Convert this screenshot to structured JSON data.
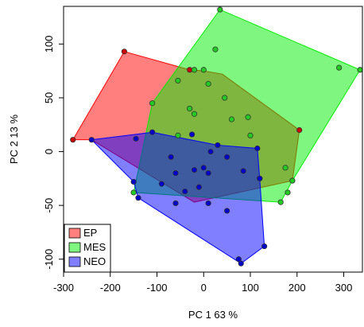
{
  "chart_data": {
    "type": "scatter",
    "xlabel": "PC 1   63 %",
    "ylabel": "PC 2   13 %",
    "xlim": [
      -300,
      340
    ],
    "ylim": [
      -112,
      135
    ],
    "xticks": [
      -300,
      -200,
      -100,
      0,
      100,
      200,
      300
    ],
    "yticks": [
      -100,
      -50,
      0,
      50,
      100
    ],
    "legend": {
      "position": "bottom-left",
      "entries": [
        "EP",
        "MES",
        "NEO"
      ]
    },
    "series": [
      {
        "name": "EP",
        "color": "#ff0000",
        "point_fill": "#cc0000",
        "hull": [
          [
            -280,
            11
          ],
          [
            -170,
            93
          ],
          [
            -30,
            76
          ],
          [
            0,
            75
          ],
          [
            40,
            72
          ],
          [
            205,
            20
          ],
          [
            190,
            -27
          ],
          [
            -20,
            -47
          ],
          [
            -240,
            11
          ]
        ],
        "points": [
          [
            -280,
            11
          ],
          [
            -170,
            93
          ],
          [
            -30,
            76
          ],
          [
            205,
            20
          ],
          [
            190,
            -27
          ]
        ]
      },
      {
        "name": "MES",
        "color": "#00ee00",
        "point_fill": "#22cc22",
        "hull": [
          [
            35,
            132
          ],
          [
            335,
            76
          ],
          [
            190,
            -27
          ],
          [
            165,
            -47
          ],
          [
            -150,
            -38
          ],
          [
            -110,
            45
          ]
        ],
        "points": [
          [
            35,
            132
          ],
          [
            290,
            78
          ],
          [
            335,
            76
          ],
          [
            25,
            95
          ],
          [
            -20,
            76
          ],
          [
            0,
            76
          ],
          [
            -55,
            66
          ],
          [
            10,
            63
          ],
          [
            -110,
            45
          ],
          [
            45,
            50
          ],
          [
            -30,
            40
          ],
          [
            95,
            32
          ],
          [
            100,
            15
          ],
          [
            -55,
            15
          ],
          [
            175,
            -15
          ],
          [
            -150,
            -38
          ],
          [
            165,
            -47
          ],
          [
            180,
            -38
          ],
          [
            190,
            -27
          ],
          [
            120,
            -25
          ],
          [
            -20,
            35
          ],
          [
            60,
            30
          ]
        ]
      },
      {
        "name": "NEO",
        "color": "#0000ff",
        "point_fill": "#0000cc",
        "hull": [
          [
            -240,
            11
          ],
          [
            -110,
            18
          ],
          [
            30,
            6
          ],
          [
            115,
            3
          ],
          [
            120,
            -25
          ],
          [
            130,
            -88
          ],
          [
            80,
            -104
          ],
          [
            -140,
            -43
          ],
          [
            -150,
            -28
          ]
        ],
        "points": [
          [
            -240,
            11
          ],
          [
            -145,
            12
          ],
          [
            -110,
            18
          ],
          [
            -25,
            16
          ],
          [
            30,
            6
          ],
          [
            115,
            3
          ],
          [
            -70,
            -5
          ],
          [
            15,
            0
          ],
          [
            -20,
            -17
          ],
          [
            10,
            -20
          ],
          [
            -10,
            -33
          ],
          [
            -90,
            -30
          ],
          [
            -150,
            -28
          ],
          [
            -140,
            -43
          ],
          [
            -60,
            -48
          ],
          [
            10,
            -48
          ],
          [
            -40,
            -37
          ],
          [
            85,
            -18
          ],
          [
            120,
            -25
          ],
          [
            50,
            -55
          ],
          [
            130,
            -88
          ],
          [
            80,
            -104
          ],
          [
            75,
            -100
          ],
          [
            -60,
            -20
          ],
          [
            50,
            -5
          ],
          [
            0,
            -15
          ]
        ]
      }
    ]
  }
}
